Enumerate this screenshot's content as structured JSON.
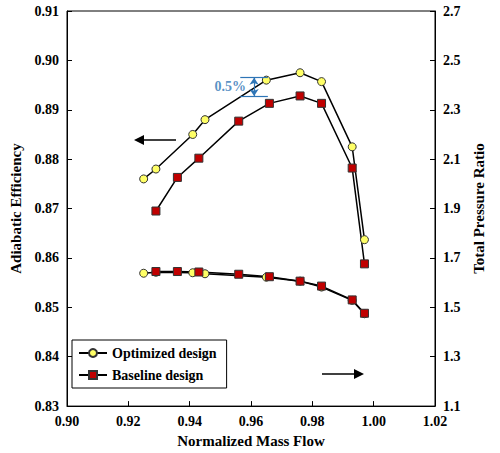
{
  "chart_data": {
    "type": "line",
    "xlabel": "Normalized Mass Flow",
    "ylabel": "Adiabatic Efficiency",
    "y2label": "Total Pressure Ratio",
    "xlim": [
      0.9,
      1.02
    ],
    "xticks": [
      {
        "value": 0.9,
        "label": "0.90"
      },
      0.92,
      0.94,
      0.96,
      0.98,
      {
        "value": 1.0,
        "label": "1.00"
      },
      1.02
    ],
    "ylim": [
      0.83,
      0.91
    ],
    "yticks": [
      0.83,
      0.84,
      0.85,
      0.86,
      0.87,
      0.88,
      0.89,
      {
        "value": 0.9,
        "label": "0.90"
      },
      0.91
    ],
    "y2lim": [
      1.1,
      2.7
    ],
    "y2ticks": [
      1.1,
      1.3,
      1.5,
      1.7,
      1.9,
      2.1,
      2.3,
      2.5,
      2.7
    ],
    "grid": false,
    "legend": "lower left",
    "series": [
      {
        "name": "Optimized design",
        "color": "#ffff66",
        "marker": "circle",
        "x": [
          0.925,
          0.929,
          0.941,
          0.945,
          0.965,
          0.976,
          0.983,
          0.993,
          0.997
        ],
        "values": [
          0.876,
          0.878,
          0.885,
          0.888,
          0.896,
          0.8975,
          0.8957,
          0.8825,
          0.8637
        ]
      },
      {
        "name": "Baseline design",
        "color": "#c00000",
        "marker": "square",
        "x": [
          0.929,
          0.936,
          0.943,
          0.956,
          0.966,
          0.976,
          0.983,
          0.993,
          0.997
        ],
        "values": [
          0.8695,
          0.8763,
          0.8802,
          0.8877,
          0.8913,
          0.8928,
          0.8913,
          0.8782,
          0.8588
        ]
      },
      {
        "name": "Optimized design",
        "color": "#ffff66",
        "marker": "circle",
        "axis": "y2",
        "x": [
          0.925,
          0.929,
          0.941,
          0.945,
          0.965,
          0.976,
          0.983,
          0.993,
          0.997
        ],
        "values": [
          1.638,
          1.642,
          1.64,
          1.636,
          1.622,
          1.606,
          1.582,
          1.528,
          1.474
        ]
      },
      {
        "name": "Baseline design",
        "color": "#c00000",
        "marker": "square",
        "axis": "y2",
        "x": [
          0.929,
          0.936,
          0.943,
          0.956,
          0.966,
          0.976,
          0.983,
          0.993,
          0.997
        ],
        "values": [
          1.645,
          1.645,
          1.643,
          1.634,
          1.624,
          1.606,
          1.586,
          1.53,
          1.476
        ]
      }
    ],
    "annotations": [
      {
        "text": "0.5%",
        "x": 0.961,
        "y": [
          0.8928,
          0.8965
        ],
        "color": "#2e75b6"
      }
    ]
  }
}
